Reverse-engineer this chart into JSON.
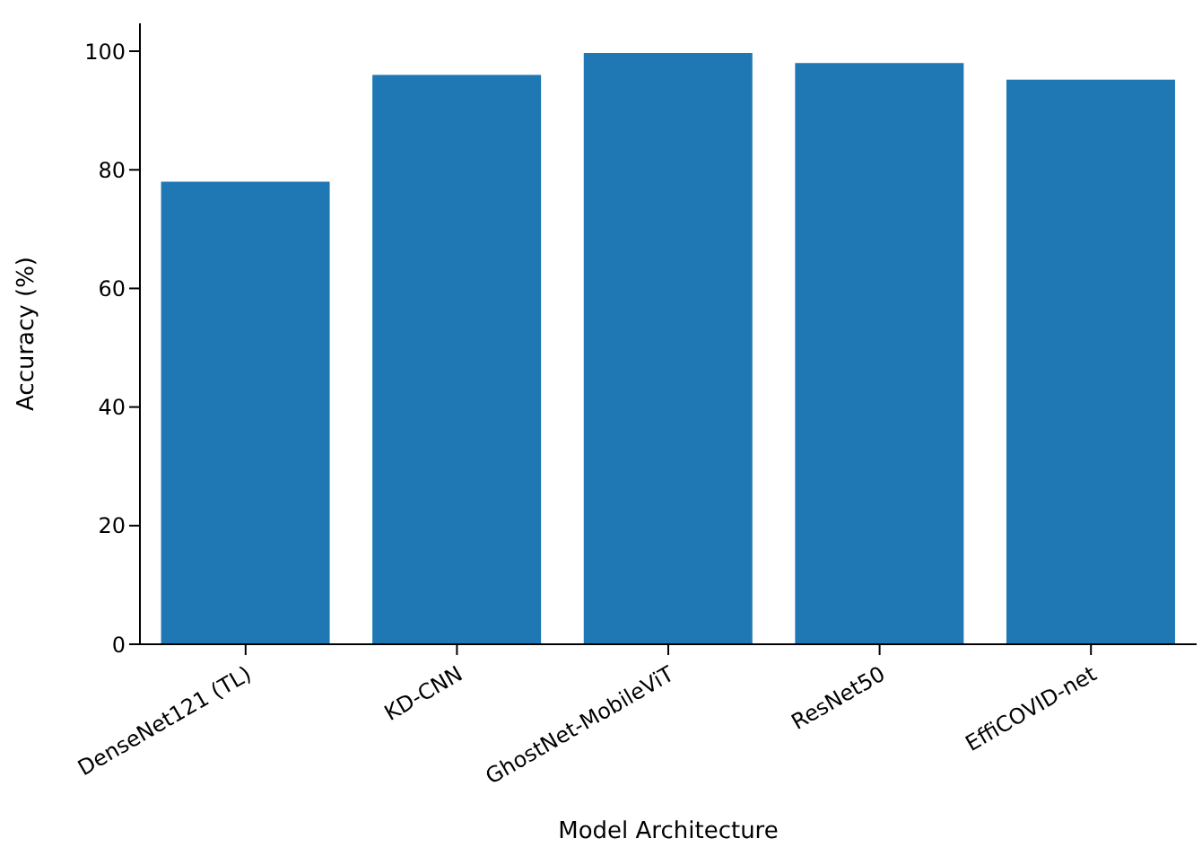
{
  "chart_data": {
    "type": "bar",
    "xlabel": "Model Architecture",
    "ylabel": "Accuracy (%)",
    "categories": [
      "DenseNet121 (TL)",
      "KD-CNN",
      "GhostNet-MobileViT",
      "ResNet50",
      "EffiCOVID-net"
    ],
    "values": [
      78,
      96,
      99.7,
      98,
      95.2
    ],
    "color": "#1f77b4",
    "ylim": [
      0,
      104.7
    ],
    "yticks": [
      0,
      20,
      40,
      60,
      80,
      100
    ],
    "grid": false,
    "legend": false
  }
}
